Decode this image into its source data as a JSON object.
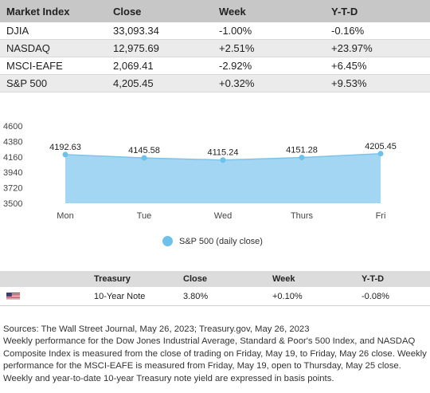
{
  "index_table": {
    "headers": [
      "Market Index",
      "Close",
      "Week",
      "Y-T-D"
    ],
    "rows": [
      [
        "DJIA",
        "33,093.34",
        "-1.00%",
        "-0.16%"
      ],
      [
        "NASDAQ",
        "12,975.69",
        "+2.51%",
        "+23.97%"
      ],
      [
        "MSCI-EAFE",
        "2,069.41",
        "-2.92%",
        "+6.45%"
      ],
      [
        "S&P 500",
        "4,205.45",
        "+0.32%",
        "+9.53%"
      ]
    ]
  },
  "chart_data": {
    "type": "area",
    "categories": [
      "Mon",
      "Tue",
      "Wed",
      "Thurs",
      "Fri"
    ],
    "series": [
      {
        "name": "S&P 500 (daily close)",
        "values": [
          4192.63,
          4145.58,
          4115.24,
          4151.28,
          4205.45
        ]
      }
    ],
    "data_labels": [
      "4192.63",
      "4145.58",
      "4115.24",
      "4151.28",
      "4205.45"
    ],
    "y_ticks": [
      3500,
      3720,
      3940,
      4160,
      4380,
      4600
    ],
    "ylim": [
      3500,
      4600
    ],
    "grid": false,
    "legend_position": "bottom",
    "colors": {
      "fill": "#a3d6f2",
      "stroke": "#7dc4ea",
      "marker": "#6ec1ea"
    }
  },
  "legend": {
    "label": "S&P 500 (daily close)",
    "color": "#6ec1ea"
  },
  "treasury_table": {
    "headers": [
      "",
      "Treasury",
      "Close",
      "Week",
      "Y-T-D"
    ],
    "row": {
      "flag_icon": "us-flag-icon",
      "name": "10-Year Note",
      "close": "3.80%",
      "week": "+0.10%",
      "ytd": "-0.08%"
    }
  },
  "sources": {
    "line1": "Sources: The Wall Street Journal, May 26, 2023; Treasury.gov, May 26, 2023",
    "body": "Weekly performance for the Dow Jones Industrial Average, Standard & Poor's 500 Index, and NASDAQ Composite Index is measured from the close of trading on Friday, May 19, to Friday, May 26 close. Weekly performance for the MSCI-EAFE is measured from Friday, May 19, open to Thursday, May 25 close. Weekly and year-to-date 10-year Treasury note yield are expressed in basis points."
  }
}
